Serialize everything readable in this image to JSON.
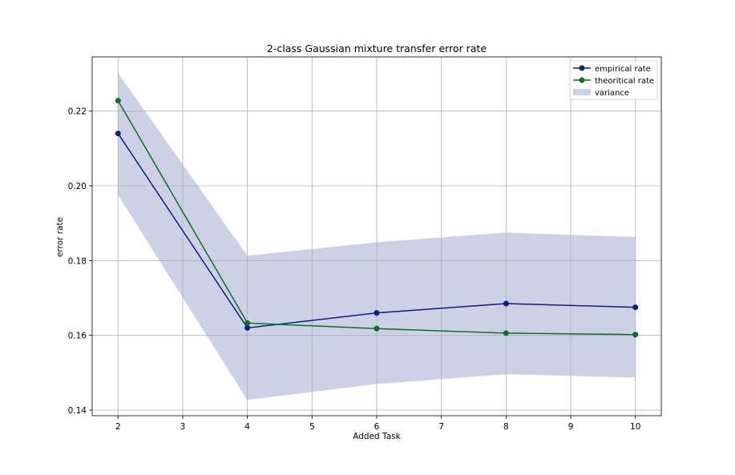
{
  "chart_data": {
    "type": "line",
    "title": "2-class Gaussian mixture transfer error rate",
    "xlabel": "Added Task",
    "ylabel": "error rate",
    "xlim": [
      1.6,
      10.4
    ],
    "ylim": [
      0.1385,
      0.2345
    ],
    "x_ticks": [
      2,
      3,
      4,
      5,
      6,
      7,
      8,
      9,
      10
    ],
    "y_ticks": [
      0.14,
      0.16,
      0.18,
      0.2,
      0.22
    ],
    "y_tick_labels": [
      "0.14",
      "0.16",
      "0.18",
      "0.20",
      "0.22"
    ],
    "grid": true,
    "legend_position": "top-right",
    "x": [
      2,
      4,
      6,
      8,
      10
    ],
    "series": [
      {
        "name": "empirical rate",
        "values": [
          0.214,
          0.162,
          0.166,
          0.1685,
          0.1675
        ],
        "color": "#0c1f7e",
        "marker": "circle"
      },
      {
        "name": "theoritical rate",
        "values": [
          0.2228,
          0.1633,
          0.1618,
          0.1606,
          0.1602
        ],
        "color": "#0a7124",
        "marker": "circle"
      }
    ],
    "band": {
      "name": "variance",
      "color": "#cdd1e5",
      "upper": [
        0.2302,
        0.1813,
        0.1849,
        0.1875,
        0.1863
      ],
      "lower": [
        0.1975,
        0.1427,
        0.147,
        0.1496,
        0.1487
      ]
    }
  }
}
